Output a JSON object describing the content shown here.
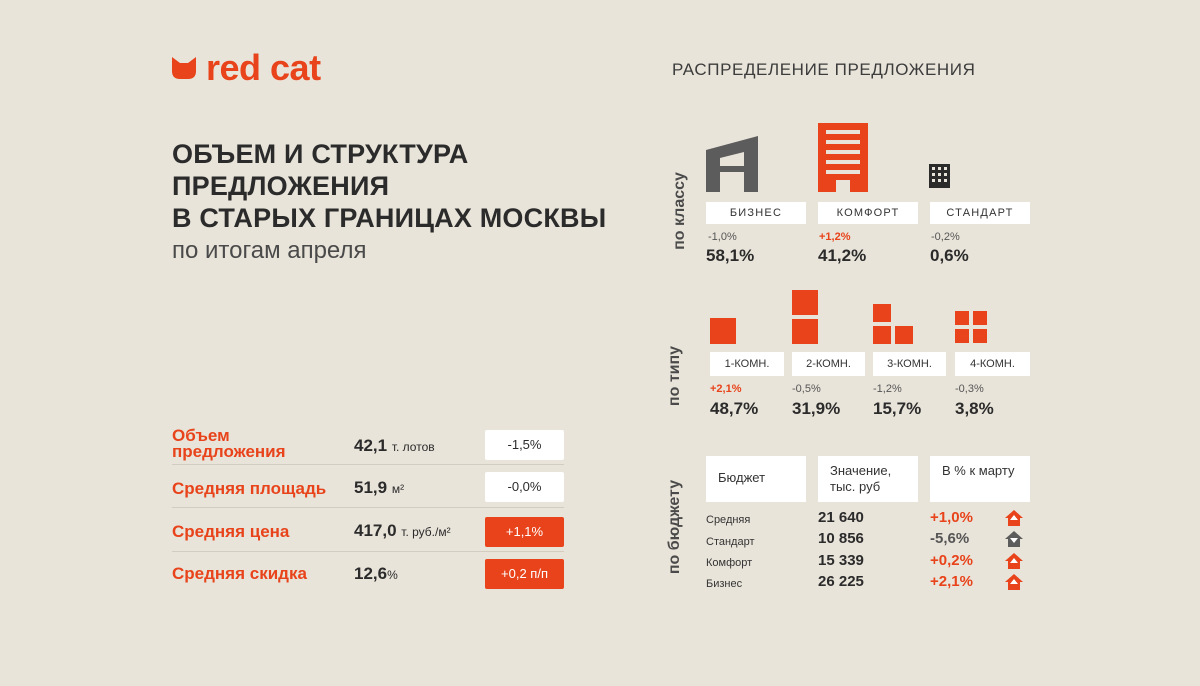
{
  "brand": {
    "name": "red cat",
    "color": "#e8431a"
  },
  "headline": {
    "lines": [
      "ОБЪЕМ И СТРУКТУРА",
      "ПРЕДЛОЖЕНИЯ",
      "В СТАРЫХ ГРАНИЦАХ МОСКВЫ"
    ],
    "subtitle": "по итогам апреля"
  },
  "metrics": [
    {
      "label": "Объем предложения",
      "value": "42,1",
      "unit": "т. лотов",
      "change": "-1,5%",
      "highlight": false
    },
    {
      "label": "Средняя площадь",
      "value": "51,9",
      "unit": "м²",
      "change": "-0,0%",
      "highlight": false
    },
    {
      "label": "Средняя цена",
      "value": "417,0",
      "unit": "т. руб./м²",
      "change": "+1,1%",
      "highlight": true
    },
    {
      "label": "Средняя скидка",
      "value": "12,6",
      "unit": "%",
      "change": "+0,2 п/п",
      "highlight": true
    }
  ],
  "distribution": {
    "title": "РАСПРЕДЕЛЕНИЕ ПРЕДЛОЖЕНИЯ",
    "by_class": {
      "label": "по классу",
      "items": [
        {
          "name": "БИЗНЕС",
          "delta": "-1,0%",
          "share": "58,1%",
          "delta_positive": false,
          "icon": "business-building-icon"
        },
        {
          "name": "КОМФОРТ",
          "delta": "+1,2%",
          "share": "41,2%",
          "delta_positive": true,
          "icon": "comfort-building-icon"
        },
        {
          "name": "СТАНДАРТ",
          "delta": "-0,2%",
          "share": "0,6%",
          "delta_positive": false,
          "icon": "standard-building-icon"
        }
      ]
    },
    "by_type": {
      "label": "по типу",
      "items": [
        {
          "name": "1-КОМН.",
          "delta": "+2,1%",
          "share": "48,7%",
          "delta_positive": true,
          "icon": "one-room-icon"
        },
        {
          "name": "2-КОМН.",
          "delta": "-0,5%",
          "share": "31,9%",
          "delta_positive": false,
          "icon": "two-room-icon"
        },
        {
          "name": "3-КОМН.",
          "delta": "-1,2%",
          "share": "15,7%",
          "delta_positive": false,
          "icon": "three-room-icon"
        },
        {
          "name": "4-КОМН.",
          "delta": "-0,3%",
          "share": "3,8%",
          "delta_positive": false,
          "icon": "four-room-icon"
        }
      ]
    },
    "by_budget": {
      "label": "по бюджету",
      "headers": [
        "Бюджет",
        "Значение, тыс. руб",
        "В % к марту"
      ],
      "rows": [
        {
          "name": "Средняя",
          "value": "21 640",
          "change": "+1,0%",
          "up": true
        },
        {
          "name": "Стандарт",
          "value": "10 856",
          "change": "-5,6%",
          "up": false
        },
        {
          "name": "Комфорт",
          "value": "15 339",
          "change": "+0,2%",
          "up": true
        },
        {
          "name": "Бизнес",
          "value": "26 225",
          "change": "+2,1%",
          "up": true
        }
      ]
    }
  }
}
